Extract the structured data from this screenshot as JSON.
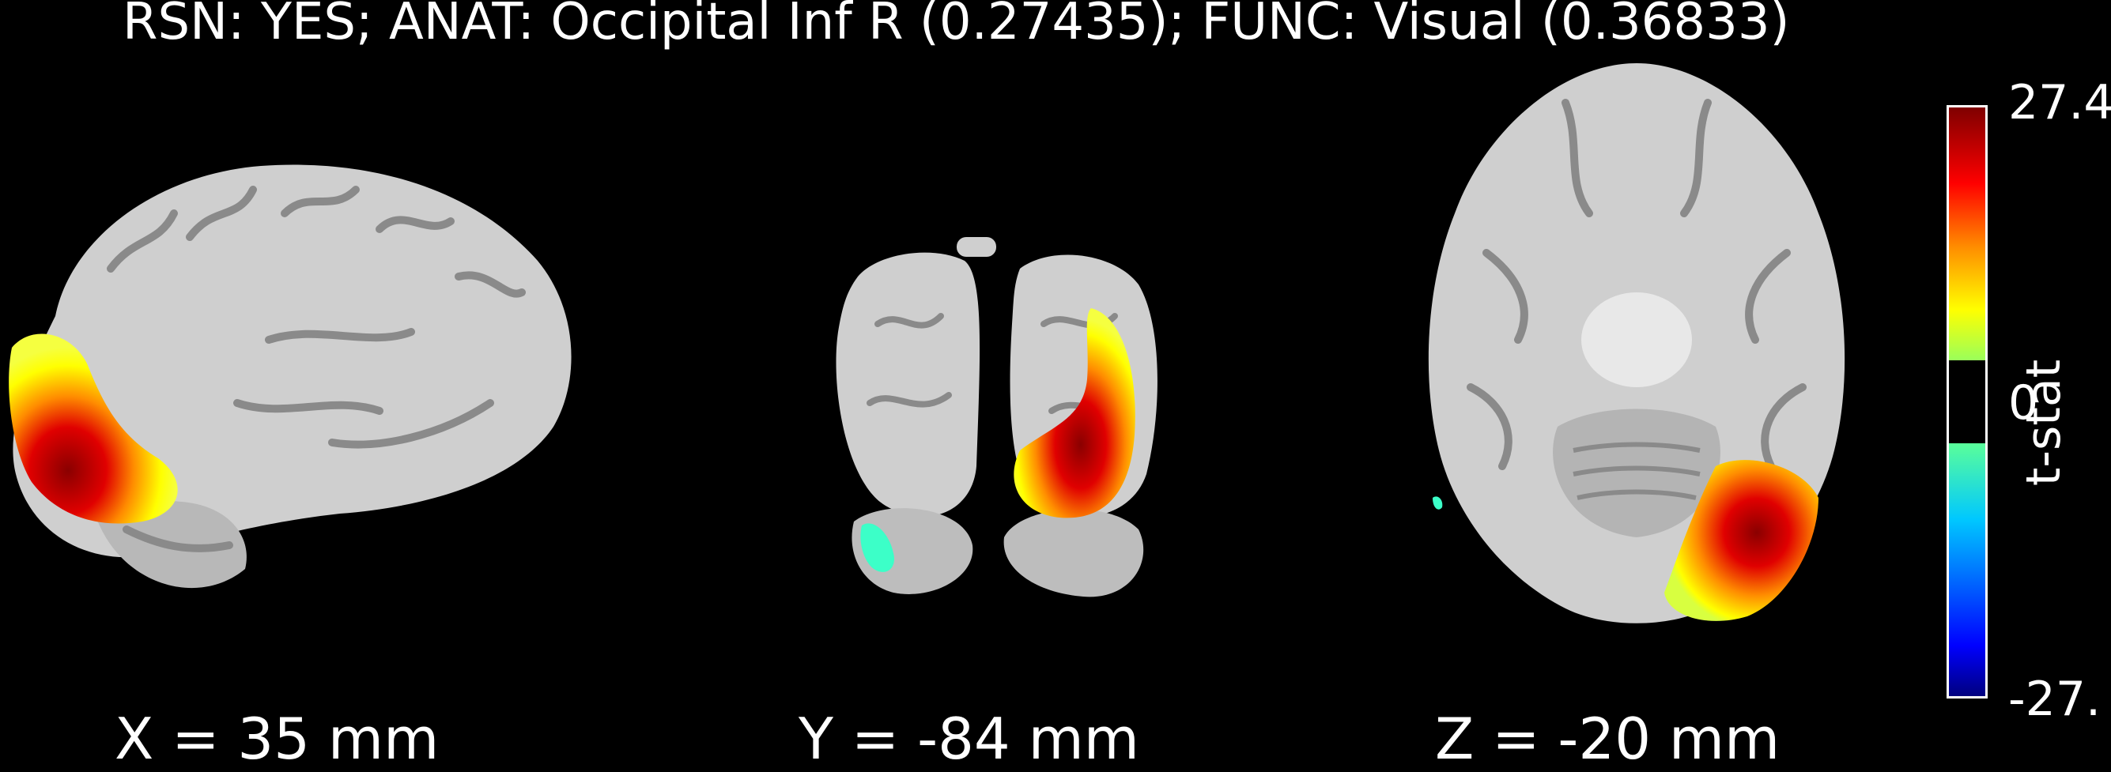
{
  "title": "RSN: YES; ANAT: Occipital Inf R (0.27435); FUNC: Visual (0.36833)",
  "panels": [
    {
      "coord_label": "X = 35 mm"
    },
    {
      "coord_label": "Y = -84 mm"
    },
    {
      "coord_label": "Z = -20 mm"
    }
  ],
  "colorbar": {
    "max_label": "27.4",
    "zero_label": "0",
    "min_label": "-27.",
    "label": "t-stat",
    "colormap": [
      "#00007f",
      "#0000ff",
      "#00c8ff",
      "#3cffc8",
      "#c8ff3c",
      "#ffff00",
      "#ff8c00",
      "#ff0000",
      "#7f0000"
    ],
    "mid_gap": "#000000"
  },
  "colors": {
    "background": "#000000",
    "brain": "#cfcfcf",
    "brain_shadow": "#9a9a9a",
    "activation_positive": "#d40000",
    "activation_negative": "#3cffc8"
  }
}
